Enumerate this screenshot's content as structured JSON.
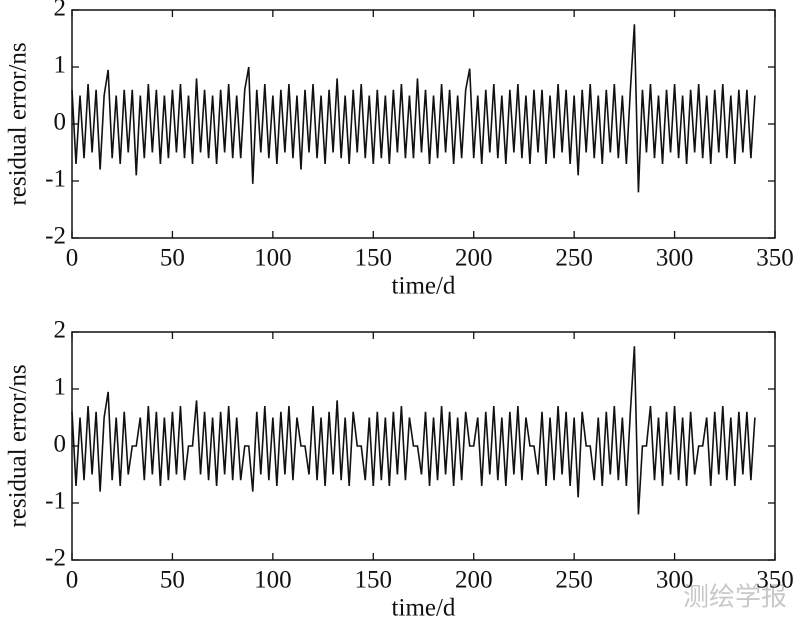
{
  "chart_data": [
    {
      "type": "line",
      "xlabel": "time/d",
      "ylabel": "residual error/ns",
      "color": "#111111",
      "xlim": [
        0,
        350
      ],
      "xticks": [
        0,
        50,
        100,
        150,
        200,
        250,
        300,
        350
      ],
      "ylim": [
        -2,
        2
      ],
      "yticks": [
        -2,
        -1,
        0,
        1,
        2
      ],
      "x": [
        0,
        2,
        4,
        6,
        8,
        10,
        12,
        14,
        16,
        18,
        20,
        22,
        24,
        26,
        28,
        30,
        32,
        34,
        36,
        38,
        40,
        42,
        44,
        46,
        48,
        50,
        52,
        54,
        56,
        58,
        60,
        62,
        64,
        66,
        68,
        70,
        72,
        74,
        76,
        78,
        80,
        82,
        84,
        86,
        88,
        90,
        92,
        94,
        96,
        98,
        100,
        102,
        104,
        106,
        108,
        110,
        112,
        114,
        116,
        118,
        120,
        122,
        124,
        126,
        128,
        130,
        132,
        134,
        136,
        138,
        140,
        142,
        144,
        146,
        148,
        150,
        152,
        154,
        156,
        158,
        160,
        162,
        164,
        166,
        168,
        170,
        172,
        174,
        176,
        178,
        180,
        182,
        184,
        186,
        188,
        190,
        192,
        194,
        196,
        198,
        200,
        202,
        204,
        206,
        208,
        210,
        212,
        214,
        216,
        218,
        220,
        222,
        224,
        226,
        228,
        230,
        232,
        234,
        236,
        238,
        240,
        242,
        244,
        246,
        248,
        250,
        252,
        254,
        256,
        258,
        260,
        262,
        264,
        266,
        268,
        270,
        272,
        274,
        276,
        278,
        280,
        282,
        284,
        286,
        288,
        290,
        292,
        294,
        296,
        298,
        300,
        302,
        304,
        306,
        308,
        310,
        312,
        314,
        316,
        318,
        320,
        322,
        324,
        326,
        328,
        330,
        332,
        334,
        336,
        338,
        340
      ],
      "values": [
        0.6,
        -0.7,
        0.5,
        -0.6,
        0.7,
        -0.5,
        0.6,
        -0.8,
        0.5,
        0.95,
        -0.6,
        0.5,
        -0.7,
        0.6,
        -0.5,
        0.6,
        -0.9,
        0.5,
        -0.6,
        0.7,
        -0.5,
        0.6,
        -0.7,
        0.5,
        -0.6,
        0.6,
        -0.5,
        0.7,
        -0.6,
        0.5,
        -0.7,
        0.8,
        -0.5,
        0.6,
        -0.6,
        0.5,
        -0.7,
        0.6,
        -0.5,
        0.7,
        -0.6,
        0.5,
        -0.6,
        0.6,
        1.0,
        -1.05,
        0.6,
        -0.5,
        0.7,
        -0.6,
        0.5,
        -0.7,
        0.6,
        -0.5,
        0.7,
        -0.6,
        0.5,
        -0.8,
        0.6,
        -0.5,
        0.7,
        -0.6,
        0.5,
        -0.7,
        0.6,
        -0.5,
        0.8,
        -0.6,
        0.5,
        -0.7,
        0.6,
        -0.5,
        0.7,
        -0.6,
        0.5,
        -0.7,
        0.6,
        -0.6,
        0.5,
        -0.7,
        0.6,
        -0.5,
        0.7,
        -0.6,
        0.5,
        -0.6,
        0.8,
        -0.5,
        0.6,
        -0.7,
        0.5,
        -0.6,
        0.7,
        -0.5,
        0.6,
        -0.7,
        0.5,
        -0.6,
        0.6,
        0.97,
        -0.6,
        0.5,
        -0.7,
        0.6,
        -0.5,
        0.7,
        -0.6,
        0.5,
        -0.7,
        0.6,
        -0.5,
        0.7,
        -0.6,
        0.5,
        -0.7,
        0.6,
        -0.5,
        0.6,
        -0.7,
        0.5,
        -0.6,
        0.7,
        -0.5,
        0.6,
        -0.7,
        0.5,
        -0.9,
        0.6,
        -0.5,
        0.7,
        -0.6,
        0.5,
        -0.7,
        0.6,
        -0.5,
        0.7,
        -0.6,
        0.5,
        -0.7,
        0.6,
        1.75,
        -1.2,
        0.6,
        -0.5,
        0.7,
        -0.6,
        0.5,
        -0.7,
        0.6,
        -0.5,
        0.7,
        -0.6,
        0.5,
        -0.7,
        0.6,
        -0.5,
        0.7,
        -0.6,
        0.5,
        -0.7,
        0.6,
        -0.5,
        0.7,
        -0.6,
        0.5,
        -0.7,
        0.6,
        -0.5,
        0.6,
        -0.6,
        0.5
      ]
    },
    {
      "type": "line",
      "xlabel": "time/d",
      "ylabel": "residual error/ns",
      "color": "#111111",
      "xlim": [
        0,
        350
      ],
      "xticks": [
        0,
        50,
        100,
        150,
        200,
        250,
        300,
        350
      ],
      "ylim": [
        -2,
        2
      ],
      "yticks": [
        -2,
        -1,
        0,
        1,
        2
      ],
      "x": [
        0,
        2,
        4,
        6,
        8,
        10,
        12,
        14,
        16,
        18,
        20,
        22,
        24,
        26,
        28,
        30,
        32,
        34,
        36,
        38,
        40,
        42,
        44,
        46,
        48,
        50,
        52,
        54,
        56,
        58,
        60,
        62,
        64,
        66,
        68,
        70,
        72,
        74,
        76,
        78,
        80,
        82,
        84,
        86,
        88,
        90,
        92,
        94,
        96,
        98,
        100,
        102,
        104,
        106,
        108,
        110,
        112,
        114,
        116,
        118,
        120,
        122,
        124,
        126,
        128,
        130,
        132,
        134,
        136,
        138,
        140,
        142,
        144,
        146,
        148,
        150,
        152,
        154,
        156,
        158,
        160,
        162,
        164,
        166,
        168,
        170,
        172,
        174,
        176,
        178,
        180,
        182,
        184,
        186,
        188,
        190,
        192,
        194,
        196,
        198,
        200,
        202,
        204,
        206,
        208,
        210,
        212,
        214,
        216,
        218,
        220,
        222,
        224,
        226,
        228,
        230,
        232,
        234,
        236,
        238,
        240,
        242,
        244,
        246,
        248,
        250,
        252,
        254,
        256,
        258,
        260,
        262,
        264,
        266,
        268,
        270,
        272,
        274,
        276,
        278,
        280,
        282,
        284,
        286,
        288,
        290,
        292,
        294,
        296,
        298,
        300,
        302,
        304,
        306,
        308,
        310,
        312,
        314,
        316,
        318,
        320,
        322,
        324,
        326,
        328,
        330,
        332,
        334,
        336,
        338,
        340
      ],
      "values": [
        0.6,
        -0.7,
        0.5,
        -0.6,
        0.7,
        -0.5,
        0.6,
        -0.8,
        0.5,
        0.95,
        -0.6,
        0.5,
        -0.7,
        0.6,
        -0.5,
        0,
        0,
        0.5,
        -0.6,
        0.7,
        -0.5,
        0.6,
        -0.7,
        0.5,
        -0.6,
        0.6,
        -0.5,
        0.7,
        -0.6,
        0,
        0,
        0.8,
        -0.5,
        0.6,
        -0.6,
        0.5,
        -0.7,
        0.6,
        -0.5,
        0.7,
        -0.6,
        0.5,
        -0.6,
        0,
        0,
        -0.8,
        0.6,
        -0.5,
        0.7,
        -0.6,
        0.5,
        -0.7,
        0.6,
        -0.5,
        0.7,
        -0.6,
        0.5,
        0,
        0,
        -0.5,
        0.7,
        -0.6,
        0.5,
        -0.7,
        0.6,
        -0.5,
        0.8,
        -0.6,
        0.5,
        -0.7,
        0.6,
        0,
        0,
        -0.6,
        0.5,
        -0.7,
        0.6,
        -0.6,
        0.5,
        -0.7,
        0.6,
        -0.5,
        0.7,
        -0.6,
        0.5,
        0,
        0,
        -0.5,
        0.6,
        -0.7,
        0.5,
        -0.6,
        0.7,
        -0.5,
        0.6,
        -0.7,
        0.5,
        -0.6,
        0.6,
        0,
        0,
        0.5,
        -0.7,
        0.6,
        -0.5,
        0.7,
        -0.6,
        0.5,
        -0.7,
        0.6,
        -0.5,
        0.7,
        -0.6,
        0.5,
        0,
        0,
        -0.5,
        0.6,
        -0.7,
        0.5,
        -0.6,
        0.7,
        -0.5,
        0.6,
        -0.7,
        0.5,
        -0.9,
        0.6,
        0,
        0,
        -0.6,
        0.5,
        -0.7,
        0.6,
        -0.5,
        0.7,
        -0.6,
        0.5,
        -0.7,
        0.6,
        1.75,
        -1.2,
        0,
        0,
        0.7,
        -0.6,
        0.5,
        -0.7,
        0.6,
        -0.5,
        0.7,
        -0.6,
        0.5,
        -0.7,
        0.6,
        -0.5,
        0,
        0,
        0.5,
        -0.7,
        0.6,
        -0.5,
        0.7,
        -0.6,
        0.5,
        -0.7,
        0.6,
        -0.5,
        0.6,
        -0.6,
        0.5
      ]
    }
  ],
  "watermark": "测绘学报"
}
